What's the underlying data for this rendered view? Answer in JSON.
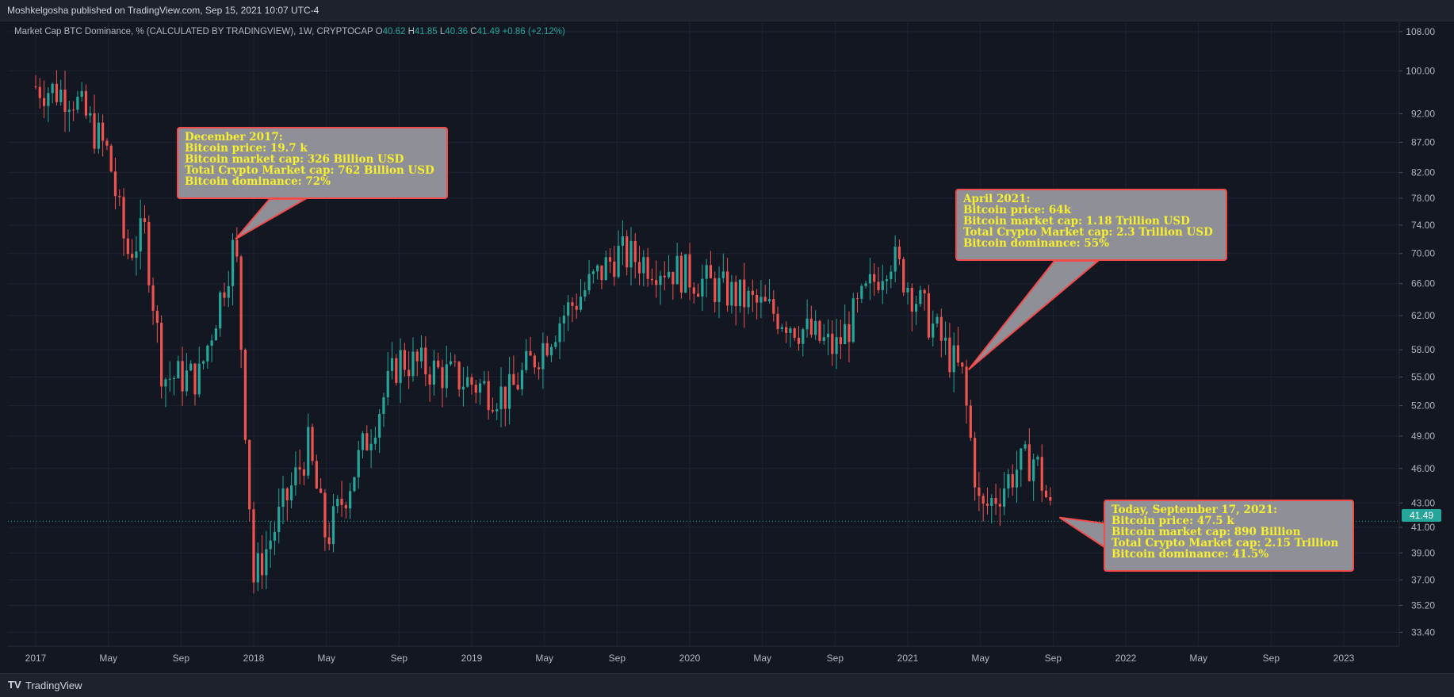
{
  "header": {
    "published": "Moshkelgosha published on TradingView.com, Sep 15, 2021 10:07 UTC-4"
  },
  "legend": {
    "title": "Market Cap BTC Dominance, % (CALCULATED BY TRADINGVIEW), 1W, CRYPTOCAP",
    "o_label": "O",
    "o": "40.62",
    "h_label": "H",
    "h": "41.85",
    "l_label": "L",
    "l": "40.36",
    "c_label": "C",
    "c": "41.49",
    "change": "+0.86 (+2.12%)"
  },
  "footer": {
    "brand": "TradingView",
    "logo": "TV"
  },
  "colors": {
    "up": "#26a69a",
    "down": "#ef5350",
    "bg": "#131722",
    "grid": "#1f2330",
    "annotation_border": "#f44a4a",
    "annotation_text": "#f7f02d"
  },
  "annotations": [
    {
      "lines": [
        "December 2017:",
        "Bitcoin price: 19.7 k",
        "Bitcoin market cap: 326 Billion USD",
        "Total Crypto Market cap: 762 Billion USD",
        "Bitcoin dominance: 72%"
      ]
    },
    {
      "lines": [
        "April 2021:",
        "Bitcoin price: 64k",
        "Bitcoin market cap: 1.18 Trillion USD",
        "Total Crypto Market cap: 2.3 Trillion USD",
        "Bitcoin dominance: 55%"
      ]
    },
    {
      "lines": [
        "Today, September 17, 2021:",
        "Bitcoin price: 47.5 k",
        "Bitcoin market cap: 890 Billion",
        "Total Crypto Market cap: 2.15 Trillion",
        "Bitcoin dominance: 41.5%"
      ]
    }
  ],
  "chart_data": {
    "type": "candlestick",
    "scale": "log",
    "y_ticks": [
      "108.00",
      "100.00",
      "92.00",
      "87.00",
      "82.00",
      "78.00",
      "74.00",
      "70.00",
      "66.00",
      "62.00",
      "58.00",
      "55.00",
      "52.00",
      "49.00",
      "46.00",
      "43.00",
      "41.00",
      "39.00",
      "37.00",
      "35.20",
      "33.40"
    ],
    "x_ticks": [
      "2017",
      "May",
      "Sep",
      "2018",
      "May",
      "Sep",
      "2019",
      "May",
      "Sep",
      "2020",
      "May",
      "Sep",
      "2021",
      "May",
      "Sep",
      "2022",
      "May",
      "Sep",
      "2023"
    ],
    "last_price": "41.49",
    "ylim": [
      32.5,
      110
    ],
    "key_points": [
      {
        "date": "2017-01",
        "value": 97
      },
      {
        "date": "2017-03",
        "value": 95.5
      },
      {
        "date": "2017-05",
        "value": 85
      },
      {
        "date": "2017-06",
        "value": 70
      },
      {
        "date": "2017-07",
        "value": 73
      },
      {
        "date": "2017-08",
        "value": 55
      },
      {
        "date": "2017-10",
        "value": 55
      },
      {
        "date": "2017-12",
        "value": 72
      },
      {
        "date": "2018-01",
        "value": 37
      },
      {
        "date": "2018-04",
        "value": 48
      },
      {
        "date": "2018-05",
        "value": 40
      },
      {
        "date": "2018-09",
        "value": 57
      },
      {
        "date": "2018-12",
        "value": 55
      },
      {
        "date": "2019-03",
        "value": 53
      },
      {
        "date": "2019-06",
        "value": 62
      },
      {
        "date": "2019-09",
        "value": 70
      },
      {
        "date": "2019-12",
        "value": 68
      },
      {
        "date": "2020-03",
        "value": 65
      },
      {
        "date": "2020-06",
        "value": 62
      },
      {
        "date": "2020-09",
        "value": 58
      },
      {
        "date": "2020-12",
        "value": 70
      },
      {
        "date": "2021-01",
        "value": 66
      },
      {
        "date": "2021-04",
        "value": 55
      },
      {
        "date": "2021-05",
        "value": 42
      },
      {
        "date": "2021-07",
        "value": 46
      },
      {
        "date": "2021-08",
        "value": 47
      },
      {
        "date": "2021-09",
        "value": 41.49
      }
    ]
  }
}
